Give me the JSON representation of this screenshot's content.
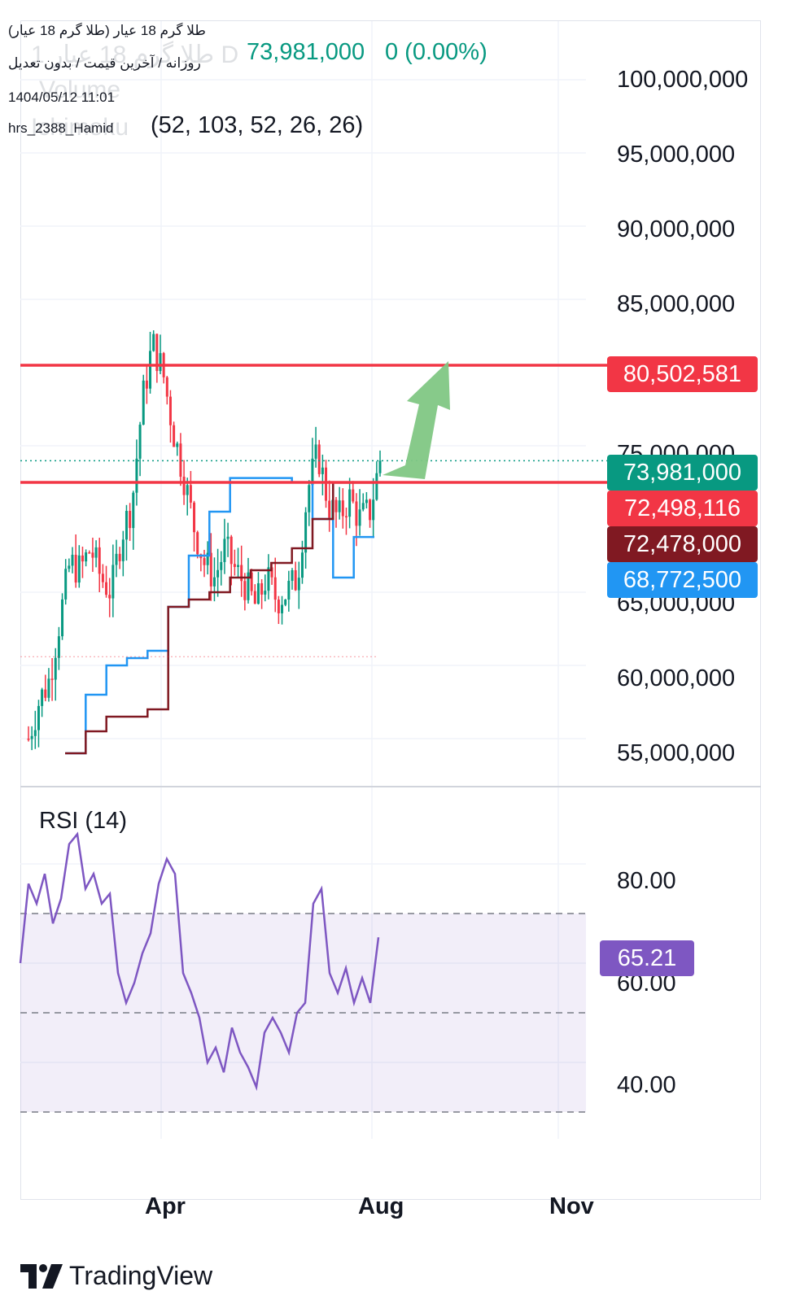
{
  "header": {
    "symbol_title": "طلا گرم 18 عیار (طلا گرم 18 عیار)",
    "settings_line": "روزانه / آخرین قیمت / بدون تعدیل",
    "timestamp": "1404/05/12 11:01",
    "author": "hrs_2388_Hamid",
    "last_price": "73,981,000",
    "change": "0 (0.00%)",
    "ghost_title": "طلا گرم 18 عیار 1 D",
    "ghost_volume": "Volume",
    "ghost_indicator": "Ichimoku",
    "indicator_params": "(52, 103, 52, 26, 26)"
  },
  "price_axis": {
    "ticks": [
      "100,000,000",
      "95,000,000",
      "90,000,000",
      "85,000,000",
      "75,000,000",
      "65,000,000",
      "60,000,000",
      "55,000,000"
    ]
  },
  "price_tags": {
    "resistance": "80,502,581",
    "last": "73,981,000",
    "support": "72,498,116",
    "kijun": "72,478,000",
    "tenkan": "68,772,500"
  },
  "rsi": {
    "label": "RSI (14)",
    "ticks": [
      "80.00",
      "60.00",
      "40.00"
    ],
    "value_tag": "65.21"
  },
  "time_axis": {
    "ticks": [
      "Apr",
      "Aug",
      "Nov"
    ]
  },
  "brand": {
    "name": "TradingView"
  },
  "colors": {
    "up": "#089981",
    "down": "#f23645",
    "tenkan": "#2196f3",
    "kijun": "#801922",
    "horizontal_line": "#f23645",
    "rsi_line": "#7e57c2",
    "rsi_band": "#7e57c2",
    "arrow": "#81c784",
    "last_price_line": "#089981"
  },
  "chart_data": [
    {
      "type": "candlestick",
      "title": "طلا گرم 18 عیار",
      "timeframe": "1D",
      "x_axis_ticks": [
        "Apr",
        "Aug",
        "Nov"
      ],
      "ylim": [
        53000000,
        102000000
      ],
      "y_ticks": [
        55000000,
        60000000,
        65000000,
        75000000,
        85000000,
        90000000,
        95000000,
        100000000
      ],
      "series": [
        {
          "name": "Price",
          "close_path": [
            55000000,
            57500000,
            59000000,
            63000000,
            67000000,
            66500000,
            68000000,
            66000000,
            65000000,
            69000000,
            71000000,
            78000000,
            82000000,
            80000000,
            76000000,
            73000000,
            69500000,
            67000000,
            66000000,
            68000000,
            66500000,
            65500000,
            64000000,
            66000000,
            64500000,
            65000000,
            66000000,
            72000000,
            74500000,
            71000000,
            70000000,
            71500000,
            70000000,
            70500000,
            73981000
          ]
        },
        {
          "name": "Tenkan",
          "last": 68772500
        },
        {
          "name": "Kijun",
          "last": 72478000
        }
      ],
      "horizontal_lines": [
        80502581,
        72498116
      ],
      "last_price": 73981000,
      "annotations": [
        "upward arrow toward 80,502,581"
      ]
    },
    {
      "type": "line",
      "title": "RSI (14)",
      "ylim": [
        30,
        86
      ],
      "y_ticks": [
        40,
        60,
        80
      ],
      "bands": [
        30,
        50,
        70
      ],
      "series": [
        {
          "name": "RSI",
          "values": [
            60,
            76,
            72,
            78,
            68,
            73,
            84,
            86,
            75,
            78,
            72,
            74,
            58,
            52,
            56,
            62,
            66,
            76,
            81,
            78,
            58,
            54,
            49,
            40,
            43,
            38,
            47,
            42,
            39,
            35,
            46,
            49,
            46,
            42,
            50,
            52,
            72,
            75,
            58,
            54,
            59,
            52,
            57,
            52,
            65.21
          ]
        }
      ],
      "last_value": 65.21
    }
  ]
}
